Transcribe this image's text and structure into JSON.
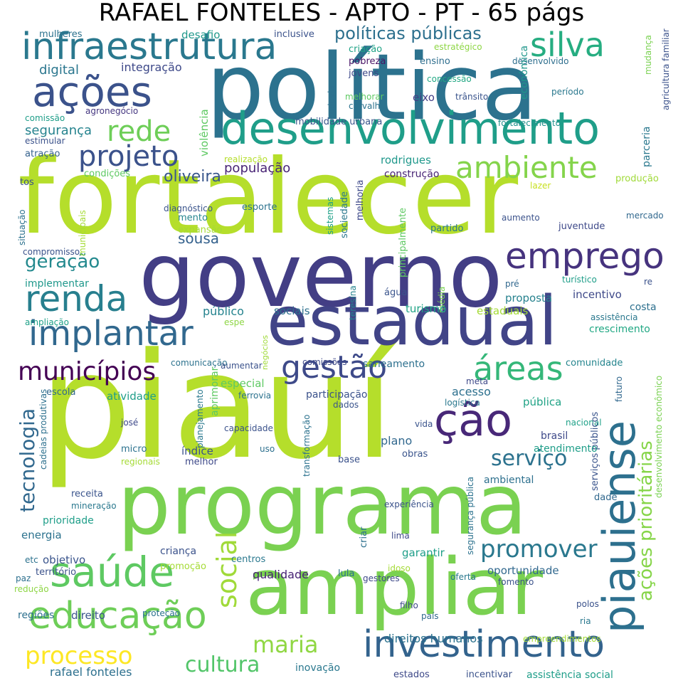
{
  "title": "RAFAEL FONTELES - APTO - PT - 65 págs",
  "words": [
    {
      "text": "piauí",
      "color": "#b5de2b"
    },
    {
      "text": "política",
      "color": "#2c728e"
    },
    {
      "text": "fortalecer",
      "color": "#b5de2b"
    },
    {
      "text": "governo",
      "color": "#433e85"
    },
    {
      "text": "programa",
      "color": "#7ad151"
    },
    {
      "text": "ampliar",
      "color": "#7ad151"
    },
    {
      "text": "estadual",
      "color": "#414487"
    },
    {
      "text": "desenvolvimento",
      "color": "#1f9e89"
    },
    {
      "text": "infraestrutura",
      "color": "#2a788e"
    },
    {
      "text": "ações",
      "color": "#3b528b"
    },
    {
      "text": "saúde",
      "color": "#5ec962"
    },
    {
      "text": "educação",
      "color": "#6ece58"
    },
    {
      "text": "investimento",
      "color": "#33638d"
    },
    {
      "text": "implantar",
      "color": "#31688e"
    },
    {
      "text": "renda",
      "color": "#277f8e"
    },
    {
      "text": "emprego",
      "color": "#46337e"
    },
    {
      "text": "piauiense",
      "color": "#2d708e"
    },
    {
      "text": "ção",
      "color": "#482878"
    },
    {
      "text": "gestão",
      "color": "#3e4a89"
    },
    {
      "text": "áreas",
      "color": "#35b779"
    },
    {
      "text": "silva",
      "color": "#26ad81"
    },
    {
      "text": "rede",
      "color": "#6ece58"
    },
    {
      "text": "projeto",
      "color": "#3b528b"
    },
    {
      "text": "ambiente",
      "color": "#84d44b"
    },
    {
      "text": "municípios",
      "color": "#440154"
    },
    {
      "text": "ações prioritárias",
      "color": "#86d549"
    },
    {
      "text": "promover",
      "color": "#2a788e"
    },
    {
      "text": "serviço",
      "color": "#2c728e"
    },
    {
      "text": "tecnologia",
      "color": "#31688e"
    },
    {
      "text": "social",
      "color": "#a0da39"
    },
    {
      "text": "maria",
      "color": "#90d743"
    },
    {
      "text": "cultura",
      "color": "#52c569"
    },
    {
      "text": "processo",
      "color": "#fde725"
    },
    {
      "text": "políticas públicas",
      "color": "#2d708e"
    },
    {
      "text": "geração",
      "color": "#23898e"
    },
    {
      "text": "sousa",
      "color": "#34618d"
    },
    {
      "text": "população",
      "color": "#482475"
    },
    {
      "text": "oliveira",
      "color": "#39568c"
    },
    {
      "text": "segurança",
      "color": "#25838e"
    },
    {
      "text": "integração",
      "color": "#3e4989"
    },
    {
      "text": "digital",
      "color": "#2a768e"
    },
    {
      "text": "mulheres",
      "color": "#2c728e"
    },
    {
      "text": "desafio",
      "color": "#1f988b"
    },
    {
      "text": "inclusive",
      "color": "#3b528b"
    },
    {
      "text": "criação",
      "color": "#20a386"
    },
    {
      "text": "estratégico",
      "color": "#8ed645"
    },
    {
      "text": "pobreza",
      "color": "#471365"
    },
    {
      "text": "jovens",
      "color": "#3e4989"
    },
    {
      "text": "ensino",
      "color": "#2e6e8e"
    },
    {
      "text": "desenvolvido",
      "color": "#2e6f8e"
    },
    {
      "text": "concessão",
      "color": "#22a884"
    },
    {
      "text": "econômica",
      "color": "#1f968b"
    },
    {
      "text": "trânsito",
      "color": "#3a548c"
    },
    {
      "text": "período",
      "color": "#2a788e"
    },
    {
      "text": "melhorar",
      "color": "#5ec962"
    },
    {
      "text": "carvalho",
      "color": "#2c728e"
    },
    {
      "text": "eixo",
      "color": "#433e85"
    },
    {
      "text": "rodovia",
      "color": "#2d708e"
    },
    {
      "text": "mobilidade urbana",
      "color": "#39568c"
    },
    {
      "text": "fortalecimento",
      "color": "#21918c"
    },
    {
      "text": "comissão",
      "color": "#1f9e89"
    },
    {
      "text": "agronegócio",
      "color": "#453781"
    },
    {
      "text": "estimular",
      "color": "#3b528b"
    },
    {
      "text": "atração",
      "color": "#34618d"
    },
    {
      "text": "realização",
      "color": "#b5de2b"
    },
    {
      "text": "condições",
      "color": "#5ec962"
    },
    {
      "text": "rodrigues",
      "color": "#1f988b"
    },
    {
      "text": "construção",
      "color": "#482475"
    },
    {
      "text": "produção",
      "color": "#a0da39"
    },
    {
      "text": "tos",
      "color": "#3b528b"
    },
    {
      "text": "lazer",
      "color": "#c8e020"
    },
    {
      "text": "diagnóstico",
      "color": "#3a548c"
    },
    {
      "text": "esporte",
      "color": "#2c728e"
    },
    {
      "text": "mento",
      "color": "#25858e"
    },
    {
      "text": "expansão",
      "color": "#a5db36"
    },
    {
      "text": "sistemas",
      "color": "#1fa188"
    },
    {
      "text": "sociedade",
      "color": "#2a788e"
    },
    {
      "text": "melhoria",
      "color": "#3e4989"
    },
    {
      "text": "partido",
      "color": "#2a788e"
    },
    {
      "text": "aumento",
      "color": "#3b528b"
    },
    {
      "text": "juventude",
      "color": "#3e4989"
    },
    {
      "text": "mercado",
      "color": "#31688e"
    },
    {
      "text": "situação",
      "color": "#2c728e"
    },
    {
      "text": "municipais",
      "color": "#a5db36"
    },
    {
      "text": "compromisso",
      "color": "#3b528b"
    },
    {
      "text": "principalmente",
      "color": "#5ec962"
    },
    {
      "text": "implementar",
      "color": "#1f988b"
    },
    {
      "text": "proposta",
      "color": "#26828e"
    },
    {
      "text": "incentivo",
      "color": "#3e4989"
    },
    {
      "text": "turístico",
      "color": "#1f9e89"
    },
    {
      "text": "pré",
      "color": "#31688e"
    },
    {
      "text": "re",
      "color": "#3b528b"
    },
    {
      "text": "teresina",
      "color": "#25838e"
    },
    {
      "text": "água",
      "color": "#3a548c"
    },
    {
      "text": "média",
      "color": "#7ad151"
    },
    {
      "text": "público",
      "color": "#25838e"
    },
    {
      "text": "sociais",
      "color": "#2d708e"
    },
    {
      "text": "turismo",
      "color": "#20a386"
    },
    {
      "text": "estaduais",
      "color": "#a5db36"
    },
    {
      "text": "costa",
      "color": "#2d708e"
    },
    {
      "text": "assistência",
      "color": "#2a788e"
    },
    {
      "text": "crescimento",
      "color": "#22a884"
    },
    {
      "text": "ampliação",
      "color": "#1fa188"
    },
    {
      "text": "espe",
      "color": "#8ed645"
    },
    {
      "text": "comunicação",
      "color": "#2c728e"
    },
    {
      "text": "aumentar",
      "color": "#3b528b"
    },
    {
      "text": "negócios",
      "color": "#a0da39"
    },
    {
      "text": "comissões",
      "color": "#3e4989"
    },
    {
      "text": "saneamento",
      "color": "#2d708e"
    },
    {
      "text": "comunidade",
      "color": "#25858e"
    },
    {
      "text": "futuro",
      "color": "#31688e"
    },
    {
      "text": "desenvolvimento econômico",
      "color": "#7ad151"
    },
    {
      "text": "especial",
      "color": "#5ec962"
    },
    {
      "text": "ferrovia",
      "color": "#2c728e"
    },
    {
      "text": "participação",
      "color": "#3b528b"
    },
    {
      "text": "meta",
      "color": "#3e4989"
    },
    {
      "text": "logística",
      "color": "#2a788e"
    },
    {
      "text": "escola",
      "color": "#31688e"
    },
    {
      "text": "atividade",
      "color": "#1f9e89"
    },
    {
      "text": "acesso",
      "color": "#2d708e"
    },
    {
      "text": "pública",
      "color": "#20a386"
    },
    {
      "text": "dados",
      "color": "#3a548c"
    },
    {
      "text": "cadeias produtivas",
      "color": "#2d708e"
    },
    {
      "text": "josé",
      "color": "#3e4989"
    },
    {
      "text": "planejamento",
      "color": "#2a788e"
    },
    {
      "text": "aprimorar",
      "color": "#5ec962"
    },
    {
      "text": "capacidade",
      "color": "#3b528b"
    },
    {
      "text": "vida",
      "color": "#3a548c"
    },
    {
      "text": "nacional",
      "color": "#1fa188"
    },
    {
      "text": "serviços públicos",
      "color": "#3a548c"
    },
    {
      "text": "micro",
      "color": "#2c728e"
    },
    {
      "text": "índice",
      "color": "#3b528b"
    },
    {
      "text": "melhor",
      "color": "#3e4989"
    },
    {
      "text": "uso",
      "color": "#2d708e"
    },
    {
      "text": "transformação",
      "color": "#2c728e"
    },
    {
      "text": "plano",
      "color": "#31688e"
    },
    {
      "text": "obras",
      "color": "#3a548c"
    },
    {
      "text": "brasil",
      "color": "#3e4989"
    },
    {
      "text": "atendimento",
      "color": "#1f9e89"
    },
    {
      "text": "regionais",
      "color": "#a5db36"
    },
    {
      "text": "base",
      "color": "#3b528b"
    },
    {
      "text": "segurança pública",
      "color": "#2c728e"
    },
    {
      "text": "ambiental",
      "color": "#2d708e"
    },
    {
      "text": "receita",
      "color": "#3a548c"
    },
    {
      "text": "mineração",
      "color": "#2a788e"
    },
    {
      "text": "experiência",
      "color": "#3b528b"
    },
    {
      "text": "dade",
      "color": "#31688e"
    },
    {
      "text": "prioridade",
      "color": "#1f9e89"
    },
    {
      "text": "energia",
      "color": "#2c728e"
    },
    {
      "text": "criar",
      "color": "#2d708e"
    },
    {
      "text": "lima",
      "color": "#3e4989"
    },
    {
      "text": "objetivo",
      "color": "#3a548c"
    },
    {
      "text": "criança",
      "color": "#3b528b"
    },
    {
      "text": "centros",
      "color": "#2a788e"
    },
    {
      "text": "garantir",
      "color": "#1f9e89"
    },
    {
      "text": "oportunidade",
      "color": "#31688e"
    },
    {
      "text": "etc",
      "color": "#2c728e"
    },
    {
      "text": "promoção",
      "color": "#a5db36"
    },
    {
      "text": "território",
      "color": "#3b528b"
    },
    {
      "text": "paz",
      "color": "#2d708e"
    },
    {
      "text": "redução",
      "color": "#8ed645"
    },
    {
      "text": "qualidade",
      "color": "#482475"
    },
    {
      "text": "lula",
      "color": "#2c728e"
    },
    {
      "text": "idoso",
      "color": "#a5db36"
    },
    {
      "text": "gestores",
      "color": "#3e4989"
    },
    {
      "text": "oferta",
      "color": "#2a788e"
    },
    {
      "text": "fomento",
      "color": "#3b528b"
    },
    {
      "text": "regiões",
      "color": "#2d708e"
    },
    {
      "text": "direito",
      "color": "#3a548c"
    },
    {
      "text": "proteção",
      "color": "#2c728e"
    },
    {
      "text": "filho",
      "color": "#3e4989"
    },
    {
      "text": "país",
      "color": "#31688e"
    },
    {
      "text": "polos",
      "color": "#3b528b"
    },
    {
      "text": "ria",
      "color": "#2a788e"
    },
    {
      "text": "empreendimentos",
      "color": "#a5db36"
    },
    {
      "text": "direitos humanos",
      "color": "#2c728e"
    },
    {
      "text": "rafael fonteles",
      "color": "#2d708e"
    },
    {
      "text": "inovação",
      "color": "#2a788e"
    },
    {
      "text": "estados",
      "color": "#3e4989"
    },
    {
      "text": "incentivar",
      "color": "#3b528b"
    },
    {
      "text": "assistência social",
      "color": "#1f9e89"
    },
    {
      "text": "violência",
      "color": "#5ec962"
    },
    {
      "text": "mudança",
      "color": "#7ad151"
    },
    {
      "text": "agricultura familiar",
      "color": "#3b528b"
    },
    {
      "text": "parceria",
      "color": "#2a788e"
    }
  ]
}
